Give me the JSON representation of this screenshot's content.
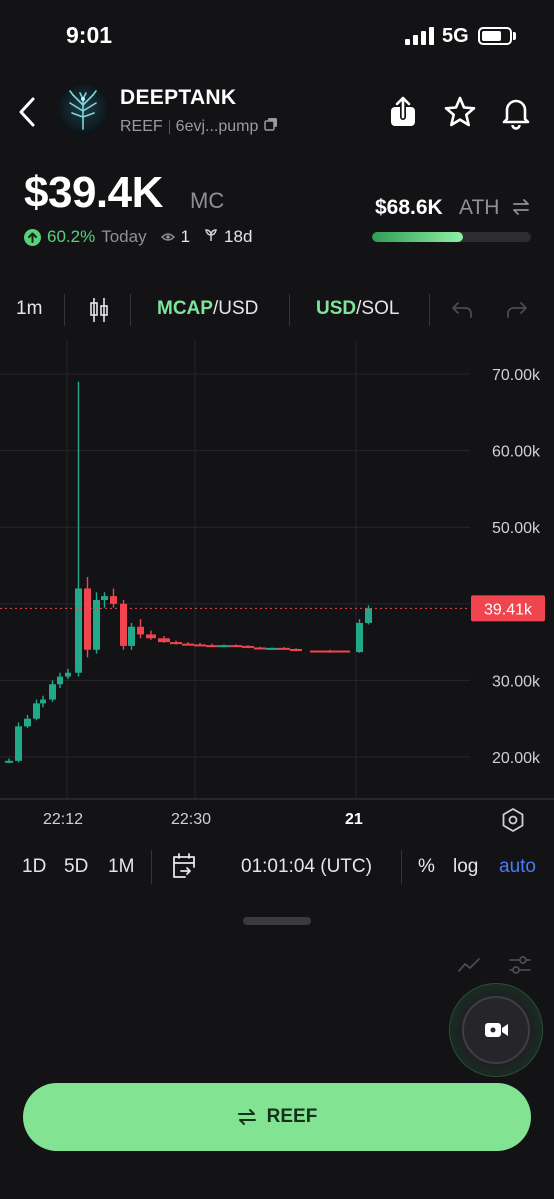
{
  "status_bar": {
    "time": "9:01",
    "network": "5G"
  },
  "token": {
    "name": "DEEPTANK",
    "symbol": "REEF",
    "address": "6evj...pump"
  },
  "price": {
    "value": "$39.4K",
    "label": "MC",
    "change": "60.2%",
    "change_period": "Today",
    "watchers": "1",
    "age": "18d",
    "ath_value": "$68.6K",
    "ath_label": "ATH",
    "ath_progress": 0.57
  },
  "toolbar": {
    "interval": "1m",
    "mcap_active": "MCAP",
    "mcap_rest": "/USD",
    "usd_active": "USD",
    "usd_rest": "/SOL"
  },
  "chart_data": {
    "type": "candlestick",
    "y_ticks": [
      "70.00k",
      "60.00k",
      "50.00k",
      "30.00k",
      "20.00k"
    ],
    "x_ticks": [
      "22:12",
      "22:30",
      "21"
    ],
    "current_price_label": "39.41k",
    "current_price": 39410,
    "ylim": [
      15000,
      75000
    ],
    "candles": [
      {
        "o": 19500,
        "h": 19800,
        "l": 19200,
        "c": 19500
      },
      {
        "o": 19500,
        "h": 24500,
        "l": 19300,
        "c": 24000
      },
      {
        "o": 24000,
        "h": 25500,
        "l": 23800,
        "c": 25000
      },
      {
        "o": 25000,
        "h": 27500,
        "l": 24800,
        "c": 27000
      },
      {
        "o": 27000,
        "h": 28000,
        "l": 26500,
        "c": 27500
      },
      {
        "o": 27500,
        "h": 30000,
        "l": 27200,
        "c": 29500
      },
      {
        "o": 29500,
        "h": 31000,
        "l": 29000,
        "c": 30500
      },
      {
        "o": 30500,
        "h": 31500,
        "l": 30200,
        "c": 31000
      },
      {
        "o": 31000,
        "h": 33500,
        "l": 30500,
        "c": 32000
      },
      {
        "o": 32000,
        "h": 69000,
        "l": 31500,
        "c": 42000
      },
      {
        "o": 42000,
        "h": 43500,
        "l": 33000,
        "c": 34000
      },
      {
        "o": 34000,
        "h": 41500,
        "l": 33500,
        "c": 40500
      },
      {
        "o": 40500,
        "h": 41500,
        "l": 39500,
        "c": 41000
      },
      {
        "o": 41000,
        "h": 42000,
        "l": 39500,
        "c": 40000
      },
      {
        "o": 40000,
        "h": 40500,
        "l": 34000,
        "c": 34500
      },
      {
        "o": 34500,
        "h": 37500,
        "l": 34000,
        "c": 37000
      },
      {
        "o": 37000,
        "h": 38000,
        "l": 35500,
        "c": 36000
      },
      {
        "o": 36000,
        "h": 36500,
        "l": 35300,
        "c": 35500
      },
      {
        "o": 35500,
        "h": 35800,
        "l": 34900,
        "c": 35000
      },
      {
        "o": 35000,
        "h": 35200,
        "l": 34700,
        "c": 34800
      },
      {
        "o": 34800,
        "h": 35000,
        "l": 34600,
        "c": 34700
      },
      {
        "o": 34700,
        "h": 34900,
        "l": 34500,
        "c": 34600
      },
      {
        "o": 34600,
        "h": 34800,
        "l": 34400,
        "c": 34550
      },
      {
        "o": 34550,
        "h": 34700,
        "l": 34400,
        "c": 34600
      },
      {
        "o": 34600,
        "h": 34700,
        "l": 34400,
        "c": 34500
      },
      {
        "o": 34500,
        "h": 34600,
        "l": 34200,
        "c": 34300
      },
      {
        "o": 34300,
        "h": 34400,
        "l": 34100,
        "c": 34200
      },
      {
        "o": 34200,
        "h": 34300,
        "l": 34000,
        "c": 34250
      },
      {
        "o": 34250,
        "h": 34350,
        "l": 34050,
        "c": 34100
      },
      {
        "o": 34100,
        "h": 34200,
        "l": 33800,
        "c": 33900
      },
      {
        "o": 33900,
        "h": 34000,
        "l": 33600,
        "c": 33700
      },
      {
        "o": 33700,
        "h": 38000,
        "l": 33600,
        "c": 37500
      },
      {
        "o": 37500,
        "h": 39800,
        "l": 37300,
        "c": 39410
      }
    ]
  },
  "range_bar": {
    "ranges": [
      "1D",
      "5D",
      "1M"
    ],
    "time": "01:01:04 (UTC)",
    "percent": "%",
    "log": "log",
    "auto": "auto"
  },
  "trade_button": {
    "label": "REEF"
  },
  "colors": {
    "up": "#22a98a",
    "down": "#f0444e",
    "accent": "#82e393"
  }
}
